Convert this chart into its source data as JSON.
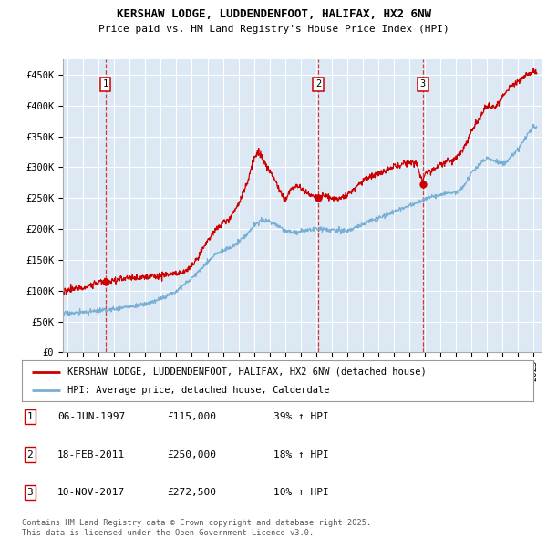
{
  "title1": "KERSHAW LODGE, LUDDENDENFOOT, HALIFAX, HX2 6NW",
  "title2": "Price paid vs. HM Land Registry's House Price Index (HPI)",
  "plot_bg_color": "#dce9f5",
  "grid_color": "#ffffff",
  "ylim": [
    0,
    475000
  ],
  "yticks": [
    0,
    50000,
    100000,
    150000,
    200000,
    250000,
    300000,
    350000,
    400000,
    450000
  ],
  "ytick_labels": [
    "£0",
    "£50K",
    "£100K",
    "£150K",
    "£200K",
    "£250K",
    "£300K",
    "£350K",
    "£400K",
    "£450K"
  ],
  "xlim_start": 1994.7,
  "xlim_end": 2025.5,
  "xticks": [
    1995,
    1996,
    1997,
    1998,
    1999,
    2000,
    2001,
    2002,
    2003,
    2004,
    2005,
    2006,
    2007,
    2008,
    2009,
    2010,
    2011,
    2012,
    2013,
    2014,
    2015,
    2016,
    2017,
    2018,
    2019,
    2020,
    2021,
    2022,
    2023,
    2024,
    2025
  ],
  "sale_color": "#cc0000",
  "hpi_color": "#7aafd4",
  "marker1_x": 1997.44,
  "marker2_x": 2011.12,
  "marker3_x": 2017.86,
  "legend_sale_label": "KERSHAW LODGE, LUDDENDENFOOT, HALIFAX, HX2 6NW (detached house)",
  "legend_hpi_label": "HPI: Average price, detached house, Calderdale",
  "table_rows": [
    {
      "num": "1",
      "date": "06-JUN-1997",
      "price": "£115,000",
      "hpi": "39% ↑ HPI"
    },
    {
      "num": "2",
      "date": "18-FEB-2011",
      "price": "£250,000",
      "hpi": "18% ↑ HPI"
    },
    {
      "num": "3",
      "date": "10-NOV-2017",
      "price": "£272,500",
      "hpi": "10% ↑ HPI"
    }
  ],
  "footnote": "Contains HM Land Registry data © Crown copyright and database right 2025.\nThis data is licensed under the Open Government Licence v3.0."
}
